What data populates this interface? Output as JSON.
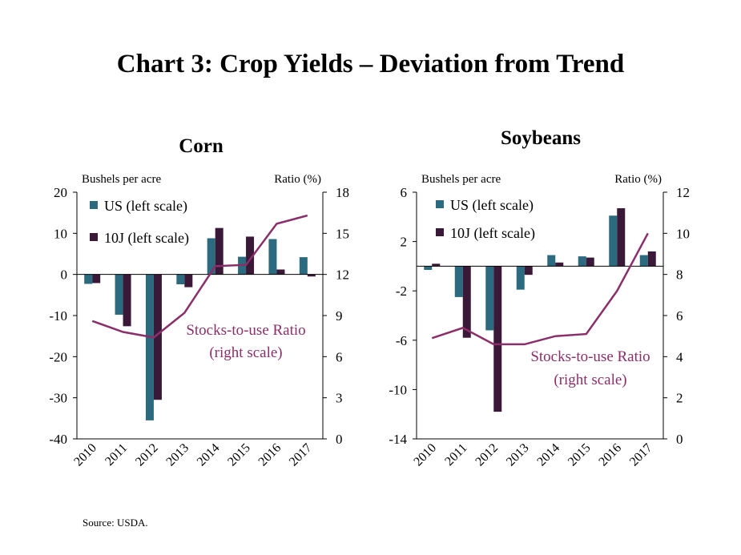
{
  "title": "Chart 3: Crop Yields – Deviation from Trend",
  "source": "Source: USDA.",
  "colors": {
    "us": "#2b6a7f",
    "tenj": "#3a1838",
    "ratio": "#8b2f6a",
    "axis": "#000000"
  },
  "chart_data": [
    {
      "type": "bar",
      "title": "Corn",
      "ylabel_left": "Bushels per acre",
      "ylabel_right": "Ratio (%)",
      "categories": [
        "2010",
        "2011",
        "2012",
        "2013",
        "2014",
        "2015",
        "2016",
        "2017"
      ],
      "ylim_left": [
        -40,
        20
      ],
      "yticks_left": [
        20,
        10,
        0,
        -10,
        -20,
        -30,
        -40
      ],
      "ylim_right": [
        0,
        18
      ],
      "yticks_right": [
        18,
        15,
        12,
        9,
        6,
        3,
        0
      ],
      "legend_position": "top-left",
      "series": [
        {
          "name": "US (left scale)",
          "type": "bar",
          "axis": "left",
          "values": [
            -2.3,
            -9.8,
            -35.5,
            -2.4,
            8.8,
            4.3,
            8.6,
            4.2
          ]
        },
        {
          "name": "10J (left scale)",
          "type": "bar",
          "axis": "left",
          "values": [
            -2.1,
            -12.6,
            -30.5,
            -3.1,
            11.3,
            9.2,
            1.2,
            -0.5
          ]
        },
        {
          "name": "Stocks-to-use Ratio",
          "type": "line",
          "axis": "right",
          "values": [
            8.6,
            7.8,
            7.4,
            9.2,
            12.6,
            12.7,
            15.7,
            16.3
          ]
        }
      ],
      "line_label": [
        "Stocks-to-use Ratio",
        "(right scale)"
      ]
    },
    {
      "type": "bar",
      "title": "Soybeans",
      "ylabel_left": "Bushels per acre",
      "ylabel_right": "Ratio (%)",
      "categories": [
        "2010",
        "2011",
        "2012",
        "2013",
        "2014",
        "2015",
        "2016",
        "2017"
      ],
      "ylim_left": [
        -14,
        6
      ],
      "yticks_left": [
        6,
        2,
        -2,
        -6,
        -10,
        -14
      ],
      "ylim_right": [
        0,
        12
      ],
      "yticks_right": [
        12,
        10,
        8,
        6,
        4,
        2,
        0
      ],
      "legend_position": "top-left",
      "series": [
        {
          "name": "US (left scale)",
          "type": "bar",
          "axis": "left",
          "values": [
            -0.3,
            -2.5,
            -5.2,
            -1.9,
            0.9,
            0.8,
            4.1,
            0.9
          ]
        },
        {
          "name": "10J (left scale)",
          "type": "bar",
          "axis": "left",
          "values": [
            0.2,
            -5.8,
            -11.8,
            -0.7,
            0.3,
            0.7,
            4.7,
            1.2
          ]
        },
        {
          "name": "Stocks-to-use Ratio",
          "type": "line",
          "axis": "right",
          "values": [
            4.9,
            5.4,
            4.6,
            4.6,
            5.0,
            5.1,
            7.2,
            10.0
          ]
        }
      ],
      "line_label": [
        "Stocks-to-use Ratio",
        "(right scale)"
      ]
    }
  ]
}
